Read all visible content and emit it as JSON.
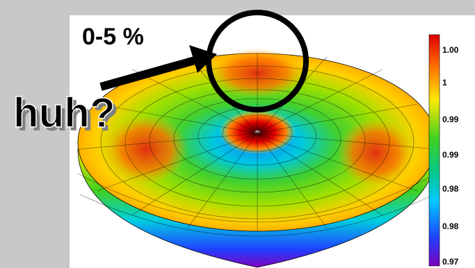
{
  "annotations": {
    "range": "0-5 %",
    "question": "huh?"
  },
  "colorbar": {
    "labels": [
      "1.00",
      "1",
      "0.99",
      "0.99",
      "0.98",
      "0.98",
      "0.97"
    ]
  }
}
